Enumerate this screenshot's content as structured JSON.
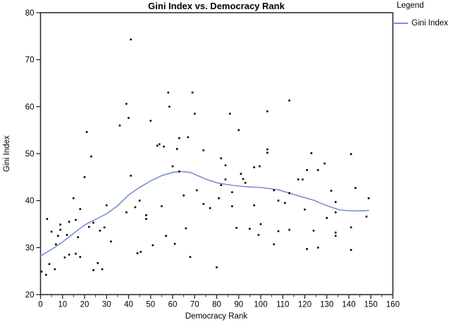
{
  "legend": {
    "title": "Legend",
    "items": [
      {
        "label": "Gini Index",
        "color": "#7b8fd2",
        "type": "line"
      }
    ]
  },
  "chart_data": {
    "type": "scatter",
    "title": "Gini Index vs. Democracy Rank",
    "xlabel": "Democracy Rank",
    "ylabel": "Gini Index",
    "xlim": [
      0,
      160
    ],
    "ylim": [
      20,
      80
    ],
    "x_ticks": [
      0,
      10,
      20,
      30,
      40,
      50,
      60,
      70,
      80,
      90,
      100,
      110,
      120,
      130,
      140,
      150,
      160
    ],
    "x_minor_step": 5,
    "y_ticks": [
      20,
      30,
      40,
      50,
      60,
      70,
      80
    ],
    "grid": false,
    "legend_position": "top-right",
    "point_color": "#000000",
    "points": [
      [
        41,
        74.3
      ],
      [
        39,
        60.6
      ],
      [
        40,
        57.6
      ],
      [
        36,
        56
      ],
      [
        21,
        54.6
      ],
      [
        50,
        57
      ],
      [
        53,
        51.7
      ],
      [
        58,
        63
      ],
      [
        69,
        63
      ],
      [
        58.5,
        60
      ],
      [
        70,
        58.5
      ],
      [
        86,
        58.5
      ],
      [
        103,
        59
      ],
      [
        90,
        55
      ],
      [
        63,
        53.3
      ],
      [
        67,
        53.5
      ],
      [
        54,
        52
      ],
      [
        56,
        51.5
      ],
      [
        62,
        51
      ],
      [
        74,
        50.7
      ],
      [
        103,
        50.9
      ],
      [
        103,
        50.2
      ],
      [
        113,
        61.3
      ],
      [
        123,
        50.1
      ],
      [
        141,
        49.9
      ],
      [
        23,
        49.4
      ],
      [
        20,
        45
      ],
      [
        41,
        45.3
      ],
      [
        15,
        40.5
      ],
      [
        45,
        40
      ],
      [
        18,
        38.2
      ],
      [
        30,
        39
      ],
      [
        43,
        38.6
      ],
      [
        39,
        37.5
      ],
      [
        48,
        36.9
      ],
      [
        48,
        36.1
      ],
      [
        3,
        36.1
      ],
      [
        13,
        35.5
      ],
      [
        16,
        35.9
      ],
      [
        9,
        34.9
      ],
      [
        5,
        33.4
      ],
      [
        9,
        33.8
      ],
      [
        24,
        35.3
      ],
      [
        22,
        34.4
      ],
      [
        29,
        34.3
      ],
      [
        27,
        33.6
      ],
      [
        8,
        32.5
      ],
      [
        12,
        32.7
      ],
      [
        17,
        32.2
      ],
      [
        32,
        31.3
      ],
      [
        7,
        30.7
      ],
      [
        51,
        30.5
      ],
      [
        13,
        28.5
      ],
      [
        16,
        28.7
      ],
      [
        11,
        27.9
      ],
      [
        18,
        28
      ],
      [
        44,
        28.8
      ],
      [
        45.5,
        29.1
      ],
      [
        4,
        26.5
      ],
      [
        6.5,
        25.4
      ],
      [
        0.5,
        24.9
      ],
      [
        2.5,
        24.2
      ],
      [
        24,
        25.2
      ],
      [
        26,
        26.7
      ],
      [
        28,
        25.4
      ],
      [
        82,
        49
      ],
      [
        60,
        47.3
      ],
      [
        84,
        47.5
      ],
      [
        97,
        47.1
      ],
      [
        99.5,
        47.3
      ],
      [
        63,
        46.2
      ],
      [
        91,
        45.7
      ],
      [
        84,
        44.5
      ],
      [
        92,
        44.6
      ],
      [
        82,
        43.3
      ],
      [
        93,
        43.8
      ],
      [
        106,
        42.2
      ],
      [
        71,
        42.2
      ],
      [
        87,
        41.8
      ],
      [
        65,
        41.1
      ],
      [
        81,
        40.5
      ],
      [
        74,
        39.3
      ],
      [
        77,
        38.4
      ],
      [
        55,
        38.8
      ],
      [
        87,
        38.8
      ],
      [
        97,
        39
      ],
      [
        108,
        40
      ],
      [
        100,
        35
      ],
      [
        89,
        34.2
      ],
      [
        95,
        34
      ],
      [
        66,
        34.1
      ],
      [
        99,
        32.7
      ],
      [
        108,
        33.5
      ],
      [
        57,
        32.5
      ],
      [
        61,
        30.8
      ],
      [
        106,
        30.7
      ],
      [
        68,
        28
      ],
      [
        80,
        25.8
      ],
      [
        129,
        47.9
      ],
      [
        121,
        46.5
      ],
      [
        126,
        46.5
      ],
      [
        117,
        44.5
      ],
      [
        119,
        44.5
      ],
      [
        113,
        41.6
      ],
      [
        132,
        42.1
      ],
      [
        143,
        42.7
      ],
      [
        149,
        40.5
      ],
      [
        111,
        39.5
      ],
      [
        120,
        38.1
      ],
      [
        134,
        39.7
      ],
      [
        134,
        37.5
      ],
      [
        148,
        36.6
      ],
      [
        130,
        36.3
      ],
      [
        141,
        34.3
      ],
      [
        113,
        33.8
      ],
      [
        124,
        33.6
      ],
      [
        134,
        33.2
      ],
      [
        134,
        32.5
      ],
      [
        121,
        29.7
      ],
      [
        126,
        30
      ],
      [
        141,
        29.5
      ]
    ],
    "series": [
      {
        "name": "Gini Index",
        "type": "loess-fit-line",
        "color": "#7b8fd2",
        "points": [
          [
            0,
            28.2
          ],
          [
            5,
            29.6
          ],
          [
            10,
            31.2
          ],
          [
            15,
            33.0
          ],
          [
            20,
            34.8
          ],
          [
            25,
            36.0
          ],
          [
            30,
            37.2
          ],
          [
            35,
            38.9
          ],
          [
            40,
            41.2
          ],
          [
            45,
            42.8
          ],
          [
            50,
            44.2
          ],
          [
            55,
            45.3
          ],
          [
            60,
            46.0
          ],
          [
            64,
            46.2
          ],
          [
            68,
            46.0
          ],
          [
            72,
            45.2
          ],
          [
            76,
            44.4
          ],
          [
            80,
            43.8
          ],
          [
            85,
            43.4
          ],
          [
            90,
            43.1
          ],
          [
            95,
            42.9
          ],
          [
            100,
            42.8
          ],
          [
            105,
            42.5
          ],
          [
            108,
            42.3
          ],
          [
            113,
            41.6
          ],
          [
            118,
            40.9
          ],
          [
            124,
            40.1
          ],
          [
            128,
            39.3
          ],
          [
            132,
            38.6
          ],
          [
            136,
            38.0
          ],
          [
            140,
            37.85
          ],
          [
            145,
            37.8
          ],
          [
            149,
            37.9
          ]
        ]
      }
    ]
  }
}
